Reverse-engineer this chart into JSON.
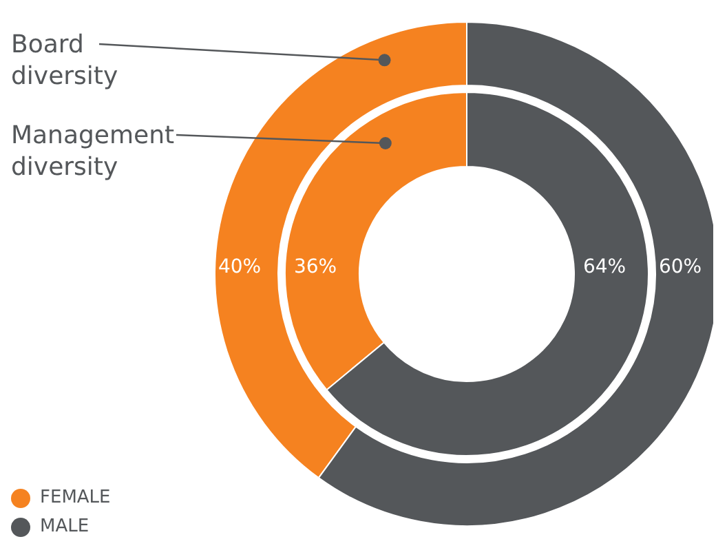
{
  "chart_data": {
    "type": "donut",
    "categories": [
      "FEMALE",
      "MALE"
    ],
    "colors": [
      "#f58220",
      "#54575a"
    ],
    "series": [
      {
        "name": "Board diversity",
        "values": [
          40,
          60
        ],
        "value_labels": [
          "40%",
          "60%"
        ]
      },
      {
        "name": "Management diversity",
        "values": [
          36,
          64
        ],
        "value_labels": [
          "36%",
          "64%"
        ]
      }
    ],
    "legend": "bottom left"
  }
}
